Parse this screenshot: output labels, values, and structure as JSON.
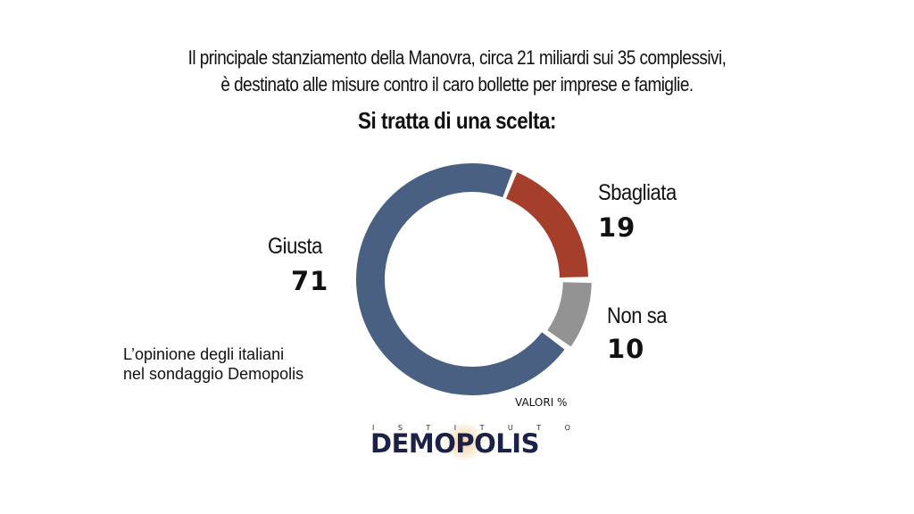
{
  "header": {
    "subtitle_line1": "Il principale stanziamento della Manovra, circa 21 miliardi sui 35 complessivi,",
    "subtitle_line2": "è destinato alle misure contro il caro bollette per imprese e famiglie.",
    "question": "Si tratta di una scelta:"
  },
  "colors": {
    "giusta": "#4A6082",
    "sbagliata": "#A63E2C",
    "non_sa": "#939393"
  },
  "chart_data": {
    "type": "pie",
    "subtype": "donut",
    "title": "Si tratta di una scelta:",
    "categories": [
      "Giusta",
      "Sbagliata",
      "Non sa"
    ],
    "values": [
      71,
      19,
      10
    ],
    "unit": "VALORI %"
  },
  "labels": {
    "giusta": {
      "label": "Giusta",
      "value": "71"
    },
    "sbagliata": {
      "label": "Sbagliata",
      "value": "19"
    },
    "non_sa": {
      "label": "Non sa",
      "value": "10"
    }
  },
  "note": {
    "line1": "L’opinione degli italiani",
    "line2": "nel sondaggio Demopolis"
  },
  "unit_label": "VALORI %",
  "logo": {
    "top_letters": [
      "I",
      "S",
      "T",
      "I",
      "T",
      "U",
      "T",
      "O"
    ],
    "name": "DEMOPOLIS"
  }
}
